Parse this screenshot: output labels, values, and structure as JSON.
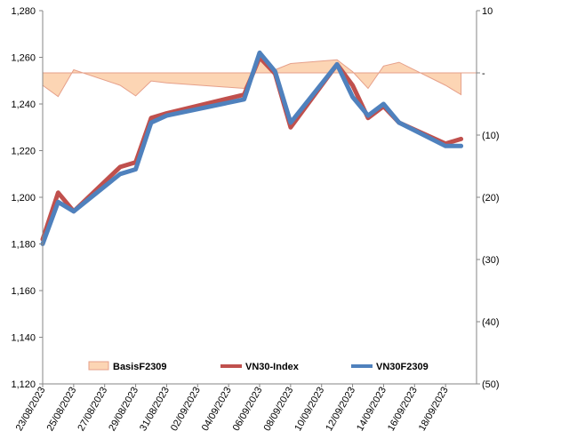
{
  "chart_data": {
    "type": "line",
    "x": [
      "23/08/2023",
      "24/08/2023",
      "25/08/2023",
      "28/08/2023",
      "29/08/2023",
      "30/08/2023",
      "31/08/2023",
      "05/09/2023",
      "06/09/2023",
      "07/09/2023",
      "08/09/2023",
      "11/09/2023",
      "12/09/2023",
      "13/09/2023",
      "14/09/2023",
      "15/09/2023",
      "18/09/2023",
      "19/09/2023"
    ],
    "x_tick_labels": [
      "23/08/2023",
      "25/08/2023",
      "27/08/2023",
      "29/08/2023",
      "31/08/2023",
      "02/09/2023",
      "04/09/2023",
      "06/09/2023",
      "08/09/2023",
      "10/09/2023",
      "12/09/2023",
      "14/09/2023",
      "16/09/2023",
      "18/09/2023"
    ],
    "xlim": [
      "23/08/2023",
      "20/09/2023"
    ],
    "y_left": {
      "ylim": [
        1120,
        1280
      ],
      "ticks": [
        "1,120",
        "1,140",
        "1,160",
        "1,180",
        "1,200",
        "1,220",
        "1,240",
        "1,260",
        "1,280"
      ]
    },
    "y_right": {
      "ylim": [
        -50,
        10
      ],
      "ticks": [
        "(50)",
        "(40)",
        "(30)",
        "(20)",
        "(10)",
        "-",
        "10"
      ]
    },
    "series": [
      {
        "name": "BasisF2309",
        "type": "area",
        "axis": "right",
        "color": "#fcd5b4",
        "edge_color": "#e6a08a",
        "values": [
          -2.0,
          -3.8,
          0.5,
          -2.0,
          -3.7,
          -1.3,
          -1.6,
          -2.5,
          2.5,
          0.5,
          1.5,
          2.1,
          0.2,
          -2.5,
          1.1,
          1.7,
          -2.0,
          -3.5
        ]
      },
      {
        "name": "VN30-Index",
        "type": "line",
        "axis": "left",
        "color": "#c0504d",
        "values": [
          1182,
          1202,
          1194,
          1213,
          1215,
          1234,
          1236,
          1244,
          1260,
          1253,
          1230,
          1257,
          1248,
          1234,
          1239,
          1232,
          1223,
          1225
        ]
      },
      {
        "name": "VN30F2309",
        "type": "line",
        "axis": "left",
        "color": "#4f81bd",
        "values": [
          1180,
          1198,
          1194,
          1210,
          1212,
          1232,
          1235,
          1242,
          1262,
          1254,
          1232,
          1257,
          1243,
          1235,
          1240,
          1232,
          1222,
          1222
        ]
      }
    ],
    "grid": false,
    "legend_position": "bottom-inside"
  }
}
